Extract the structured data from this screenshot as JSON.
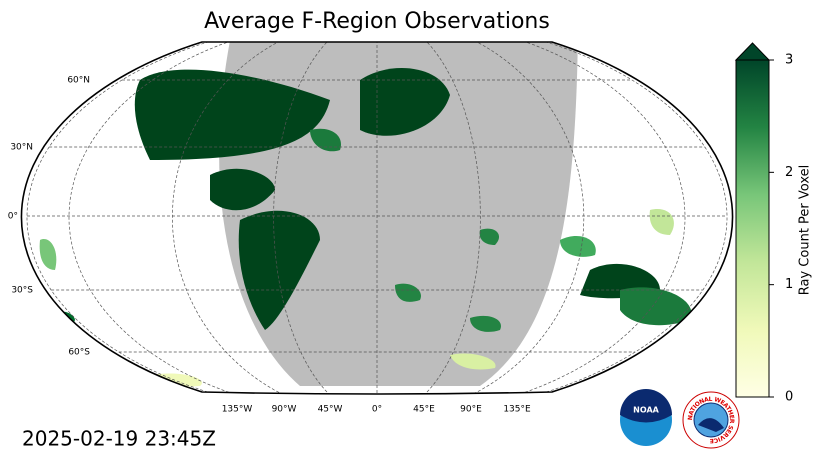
{
  "title": "Average F-Region Observations",
  "timestamp": "2025-02-19 23:45Z",
  "map": {
    "lat_labels": [
      "60°N",
      "30°N",
      "0°",
      "30°S",
      "60°S"
    ],
    "lon_labels": [
      "135°W",
      "90°W",
      "45°W",
      "0°",
      "45°E",
      "90°E",
      "135°E"
    ]
  },
  "colorbar": {
    "label": "Ray Count Per Voxel",
    "lim": [
      0,
      3
    ],
    "ticks": [
      0,
      1,
      2,
      3
    ],
    "cmap": "YlGn"
  },
  "logos": {
    "noaa": "NOAA",
    "nws": "NATIONAL WEATHER SERVICE"
  }
}
